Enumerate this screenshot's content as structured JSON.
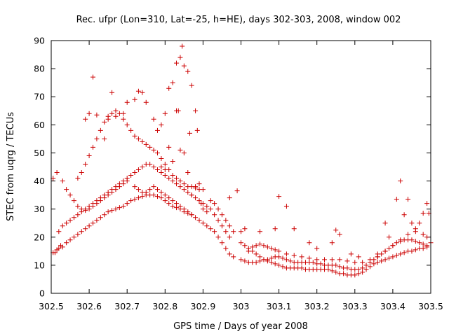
{
  "chart_data": {
    "type": "scatter",
    "title": "Rec. ufpr (Lon=310, Lat=-25, h=HE), days 302-303, 2008, window 002",
    "xlabel": "GPS time / Days of year 2008",
    "ylabel": "STEC from uqrg / TECUs",
    "xlim": [
      302.5,
      303.5
    ],
    "ylim": [
      0,
      90
    ],
    "xticks": [
      302.5,
      302.6,
      302.7,
      302.8,
      302.9,
      303,
      303.1,
      303.2,
      303.3,
      303.4,
      303.5
    ],
    "xtick_labels": [
      "302.5",
      "302.6",
      "302.7",
      "302.8",
      "302.9",
      "303",
      "303.1",
      "303.2",
      "303.3",
      "303.4",
      "303.5"
    ],
    "yticks": [
      0,
      10,
      20,
      30,
      40,
      50,
      60,
      70,
      80,
      90
    ],
    "ytick_labels": [
      "0",
      "10",
      "20",
      "30",
      "40",
      "50",
      "60",
      "70",
      "80",
      "90"
    ],
    "grid": false,
    "marker": "plus",
    "color": "#cc0000",
    "points": [
      [
        302.505,
        14.5
      ],
      [
        302.51,
        14.5
      ],
      [
        302.515,
        15.5
      ],
      [
        302.52,
        16
      ],
      [
        302.525,
        17
      ],
      [
        302.53,
        16.5
      ],
      [
        302.54,
        18
      ],
      [
        302.55,
        19
      ],
      [
        302.56,
        20
      ],
      [
        302.57,
        21
      ],
      [
        302.58,
        22
      ],
      [
        302.59,
        23
      ],
      [
        302.6,
        24
      ],
      [
        302.61,
        25
      ],
      [
        302.62,
        26
      ],
      [
        302.63,
        27
      ],
      [
        302.64,
        28
      ],
      [
        302.65,
        29
      ],
      [
        302.66,
        29.5
      ],
      [
        302.67,
        30
      ],
      [
        302.68,
        30.5
      ],
      [
        302.69,
        31
      ],
      [
        302.7,
        32
      ],
      [
        302.71,
        33
      ],
      [
        302.72,
        33.5
      ],
      [
        302.73,
        34
      ],
      [
        302.74,
        34.5
      ],
      [
        302.75,
        35
      ],
      [
        302.76,
        35
      ],
      [
        302.77,
        35
      ],
      [
        302.78,
        34.5
      ],
      [
        302.79,
        34
      ],
      [
        302.8,
        33
      ],
      [
        302.81,
        32
      ],
      [
        302.82,
        31
      ],
      [
        302.83,
        30.5
      ],
      [
        302.84,
        30
      ],
      [
        302.85,
        29
      ],
      [
        302.86,
        28.5
      ],
      [
        302.87,
        28
      ],
      [
        302.88,
        27
      ],
      [
        302.89,
        26
      ],
      [
        302.9,
        25
      ],
      [
        302.91,
        24
      ],
      [
        302.92,
        23
      ],
      [
        302.93,
        22
      ],
      [
        302.94,
        20
      ],
      [
        302.95,
        18
      ],
      [
        302.96,
        16
      ],
      [
        302.97,
        14
      ],
      [
        302.98,
        13
      ],
      [
        302.52,
        22
      ],
      [
        302.53,
        24
      ],
      [
        302.54,
        25
      ],
      [
        302.55,
        26
      ],
      [
        302.56,
        27
      ],
      [
        302.57,
        28
      ],
      [
        302.58,
        29
      ],
      [
        302.59,
        30
      ],
      [
        302.6,
        31
      ],
      [
        302.61,
        32
      ],
      [
        302.62,
        33
      ],
      [
        302.63,
        34
      ],
      [
        302.64,
        35
      ],
      [
        302.65,
        36
      ],
      [
        302.66,
        37
      ],
      [
        302.67,
        38
      ],
      [
        302.68,
        39
      ],
      [
        302.69,
        40
      ],
      [
        302.7,
        41
      ],
      [
        302.71,
        42
      ],
      [
        302.72,
        43
      ],
      [
        302.73,
        44
      ],
      [
        302.74,
        45
      ],
      [
        302.75,
        46
      ],
      [
        302.76,
        46
      ],
      [
        302.77,
        45
      ],
      [
        302.78,
        44
      ],
      [
        302.79,
        43
      ],
      [
        302.8,
        42
      ],
      [
        302.81,
        41
      ],
      [
        302.82,
        40
      ],
      [
        302.83,
        39
      ],
      [
        302.84,
        38
      ],
      [
        302.85,
        37
      ],
      [
        302.86,
        36
      ],
      [
        302.87,
        35
      ],
      [
        302.88,
        34
      ],
      [
        302.89,
        33
      ],
      [
        302.9,
        32
      ],
      [
        302.91,
        31
      ],
      [
        302.92,
        30
      ],
      [
        302.93,
        28
      ],
      [
        302.94,
        26
      ],
      [
        302.95,
        24
      ],
      [
        302.96,
        22
      ],
      [
        302.97,
        20
      ],
      [
        302.505,
        41
      ],
      [
        302.515,
        43
      ],
      [
        302.53,
        40
      ],
      [
        302.54,
        37
      ],
      [
        302.55,
        35
      ],
      [
        302.56,
        33
      ],
      [
        302.57,
        31
      ],
      [
        302.58,
        30
      ],
      [
        302.59,
        29.5
      ],
      [
        302.6,
        30
      ],
      [
        302.61,
        31
      ],
      [
        302.62,
        32
      ],
      [
        302.63,
        33
      ],
      [
        302.64,
        34
      ],
      [
        302.65,
        35
      ],
      [
        302.66,
        36
      ],
      [
        302.67,
        37
      ],
      [
        302.68,
        38
      ],
      [
        302.69,
        39
      ],
      [
        302.7,
        40
      ],
      [
        302.72,
        38
      ],
      [
        302.73,
        37
      ],
      [
        302.74,
        36
      ],
      [
        302.75,
        36
      ],
      [
        302.76,
        37
      ],
      [
        302.77,
        38
      ],
      [
        302.78,
        37
      ],
      [
        302.79,
        36
      ],
      [
        302.8,
        35
      ],
      [
        302.81,
        34
      ],
      [
        302.82,
        33
      ],
      [
        302.83,
        32
      ],
      [
        302.84,
        31
      ],
      [
        302.85,
        30
      ],
      [
        302.86,
        29
      ],
      [
        302.87,
        28
      ],
      [
        302.57,
        41
      ],
      [
        302.58,
        43
      ],
      [
        302.59,
        46
      ],
      [
        302.6,
        49
      ],
      [
        302.61,
        52
      ],
      [
        302.62,
        55
      ],
      [
        302.63,
        58
      ],
      [
        302.64,
        61
      ],
      [
        302.65,
        63
      ],
      [
        302.66,
        64
      ],
      [
        302.67,
        65
      ],
      [
        302.68,
        64
      ],
      [
        302.69,
        62
      ],
      [
        302.7,
        60
      ],
      [
        302.71,
        58
      ],
      [
        302.72,
        56
      ],
      [
        302.73,
        55
      ],
      [
        302.74,
        54
      ],
      [
        302.75,
        53
      ],
      [
        302.76,
        52
      ],
      [
        302.77,
        51
      ],
      [
        302.78,
        50
      ],
      [
        302.79,
        48
      ],
      [
        302.8,
        46
      ],
      [
        302.81,
        44
      ],
      [
        302.82,
        42
      ],
      [
        302.83,
        41
      ],
      [
        302.84,
        40
      ],
      [
        302.85,
        39
      ],
      [
        302.86,
        38
      ],
      [
        302.87,
        38
      ],
      [
        302.88,
        37.5
      ],
      [
        302.89,
        37
      ],
      [
        302.9,
        37
      ],
      [
        302.59,
        62
      ],
      [
        302.6,
        64
      ],
      [
        302.61,
        77
      ],
      [
        302.62,
        63.5
      ],
      [
        302.64,
        55
      ],
      [
        302.65,
        62
      ],
      [
        302.66,
        71.5
      ],
      [
        302.67,
        63
      ],
      [
        302.69,
        64
      ],
      [
        302.7,
        68
      ],
      [
        302.72,
        69
      ],
      [
        302.73,
        72
      ],
      [
        302.74,
        71.5
      ],
      [
        302.75,
        68
      ],
      [
        302.77,
        62
      ],
      [
        302.78,
        58
      ],
      [
        302.79,
        60
      ],
      [
        302.8,
        64
      ],
      [
        302.81,
        73
      ],
      [
        302.82,
        75
      ],
      [
        302.83,
        82
      ],
      [
        302.84,
        84
      ],
      [
        302.845,
        88
      ],
      [
        302.85,
        81
      ],
      [
        302.86,
        79
      ],
      [
        302.87,
        74
      ],
      [
        302.88,
        65
      ],
      [
        302.885,
        58
      ],
      [
        302.79,
        45
      ],
      [
        302.8,
        44
      ],
      [
        302.81,
        52
      ],
      [
        302.82,
        47
      ],
      [
        302.83,
        65
      ],
      [
        302.835,
        65
      ],
      [
        302.84,
        51
      ],
      [
        302.85,
        50
      ],
      [
        302.86,
        43
      ],
      [
        302.865,
        57
      ],
      [
        302.87,
        35
      ],
      [
        302.88,
        38
      ],
      [
        302.89,
        39
      ],
      [
        302.895,
        32
      ],
      [
        302.9,
        30
      ],
      [
        302.91,
        29
      ],
      [
        302.92,
        33
      ],
      [
        302.93,
        32
      ],
      [
        302.94,
        30
      ],
      [
        302.95,
        28
      ],
      [
        302.96,
        26
      ],
      [
        302.97,
        24
      ],
      [
        302.98,
        22
      ],
      [
        302.97,
        34
      ],
      [
        302.99,
        36.5
      ],
      [
        303.0,
        22
      ],
      [
        303.01,
        23
      ],
      [
        303.0,
        18
      ],
      [
        303.01,
        17
      ],
      [
        303.02,
        16
      ],
      [
        303.03,
        15
      ],
      [
        303.04,
        14
      ],
      [
        303.05,
        13
      ],
      [
        303.06,
        12
      ],
      [
        303.07,
        11.5
      ],
      [
        303.08,
        11
      ],
      [
        303.09,
        10.5
      ],
      [
        303.1,
        10
      ],
      [
        303.11,
        9.5
      ],
      [
        303.12,
        9
      ],
      [
        303.13,
        9
      ],
      [
        303.14,
        9
      ],
      [
        303.15,
        9
      ],
      [
        303.16,
        9
      ],
      [
        303.17,
        8.5
      ],
      [
        303.18,
        8.5
      ],
      [
        303.19,
        8.5
      ],
      [
        303.2,
        8.5
      ],
      [
        303.21,
        8.5
      ],
      [
        303.22,
        8.5
      ],
      [
        303.23,
        8.5
      ],
      [
        303.24,
        8
      ],
      [
        303.25,
        7.5
      ],
      [
        303.26,
        7
      ],
      [
        303.27,
        7
      ],
      [
        303.28,
        6.5
      ],
      [
        303.29,
        6.5
      ],
      [
        303.3,
        6.5
      ],
      [
        303.31,
        7
      ],
      [
        303.32,
        7.5
      ],
      [
        303.33,
        8.5
      ],
      [
        303.34,
        9.5
      ],
      [
        303.35,
        10.5
      ],
      [
        303.36,
        11
      ],
      [
        303.37,
        11.5
      ],
      [
        303.38,
        12
      ],
      [
        303.39,
        12.5
      ],
      [
        303.4,
        13
      ],
      [
        303.41,
        13.5
      ],
      [
        303.42,
        14
      ],
      [
        303.43,
        14.5
      ],
      [
        303.44,
        15
      ],
      [
        303.45,
        15
      ],
      [
        303.46,
        15.5
      ],
      [
        303.47,
        16
      ],
      [
        303.48,
        16
      ],
      [
        303.49,
        16.5
      ],
      [
        303.0,
        12
      ],
      [
        303.01,
        11.5
      ],
      [
        303.02,
        11
      ],
      [
        303.03,
        11
      ],
      [
        303.04,
        11
      ],
      [
        303.05,
        11.5
      ],
      [
        303.06,
        12
      ],
      [
        303.07,
        12
      ],
      [
        303.08,
        12.5
      ],
      [
        303.09,
        13
      ],
      [
        303.1,
        13
      ],
      [
        303.11,
        12.5
      ],
      [
        303.12,
        12
      ],
      [
        303.13,
        11.5
      ],
      [
        303.14,
        11
      ],
      [
        303.15,
        11
      ],
      [
        303.16,
        11
      ],
      [
        303.17,
        11
      ],
      [
        303.18,
        11
      ],
      [
        303.19,
        11
      ],
      [
        303.2,
        10.5
      ],
      [
        303.21,
        10.5
      ],
      [
        303.22,
        10
      ],
      [
        303.23,
        10
      ],
      [
        303.24,
        10
      ],
      [
        303.25,
        10
      ],
      [
        303.26,
        9.5
      ],
      [
        303.27,
        9
      ],
      [
        303.28,
        9
      ],
      [
        303.29,
        8.5
      ],
      [
        303.3,
        8.5
      ],
      [
        303.31,
        8.5
      ],
      [
        303.32,
        9
      ],
      [
        303.33,
        10
      ],
      [
        303.34,
        11
      ],
      [
        303.35,
        12
      ],
      [
        303.36,
        13
      ],
      [
        303.37,
        14
      ],
      [
        303.38,
        15
      ],
      [
        303.39,
        16
      ],
      [
        303.4,
        17
      ],
      [
        303.41,
        18
      ],
      [
        303.42,
        18.5
      ],
      [
        303.43,
        19
      ],
      [
        303.44,
        19
      ],
      [
        303.45,
        19
      ],
      [
        303.46,
        18.5
      ],
      [
        303.47,
        18
      ],
      [
        303.48,
        17.5
      ],
      [
        303.49,
        17
      ],
      [
        303.02,
        15
      ],
      [
        303.03,
        16.5
      ],
      [
        303.04,
        17
      ],
      [
        303.05,
        17.5
      ],
      [
        303.06,
        17
      ],
      [
        303.07,
        16.5
      ],
      [
        303.08,
        16
      ],
      [
        303.09,
        15.5
      ],
      [
        303.1,
        15
      ],
      [
        303.12,
        14
      ],
      [
        303.14,
        13.5
      ],
      [
        303.16,
        13
      ],
      [
        303.18,
        12.5
      ],
      [
        303.2,
        12
      ],
      [
        303.22,
        12
      ],
      [
        303.24,
        12
      ],
      [
        303.26,
        12
      ],
      [
        303.28,
        11.5
      ],
      [
        303.3,
        11
      ],
      [
        303.32,
        11
      ],
      [
        303.34,
        12
      ],
      [
        303.36,
        13
      ],
      [
        303.38,
        15
      ],
      [
        303.4,
        17
      ],
      [
        303.42,
        19
      ],
      [
        303.44,
        21
      ],
      [
        303.46,
        22
      ],
      [
        303.48,
        21
      ],
      [
        303.05,
        22
      ],
      [
        303.09,
        23
      ],
      [
        303.1,
        34.5
      ],
      [
        303.12,
        31
      ],
      [
        303.14,
        23
      ],
      [
        303.18,
        18
      ],
      [
        303.2,
        16
      ],
      [
        303.24,
        18
      ],
      [
        303.25,
        22.5
      ],
      [
        303.26,
        21
      ],
      [
        303.29,
        14
      ],
      [
        303.31,
        13
      ],
      [
        303.36,
        14
      ],
      [
        303.38,
        25
      ],
      [
        303.39,
        20
      ],
      [
        303.41,
        33.5
      ],
      [
        303.42,
        40
      ],
      [
        303.43,
        28
      ],
      [
        303.44,
        33.5
      ],
      [
        303.45,
        25
      ],
      [
        303.46,
        23
      ],
      [
        303.47,
        25
      ],
      [
        303.48,
        28.5
      ],
      [
        303.49,
        32
      ],
      [
        303.495,
        28.5
      ],
      [
        303.49,
        20
      ],
      [
        303.5,
        18
      ]
    ]
  }
}
